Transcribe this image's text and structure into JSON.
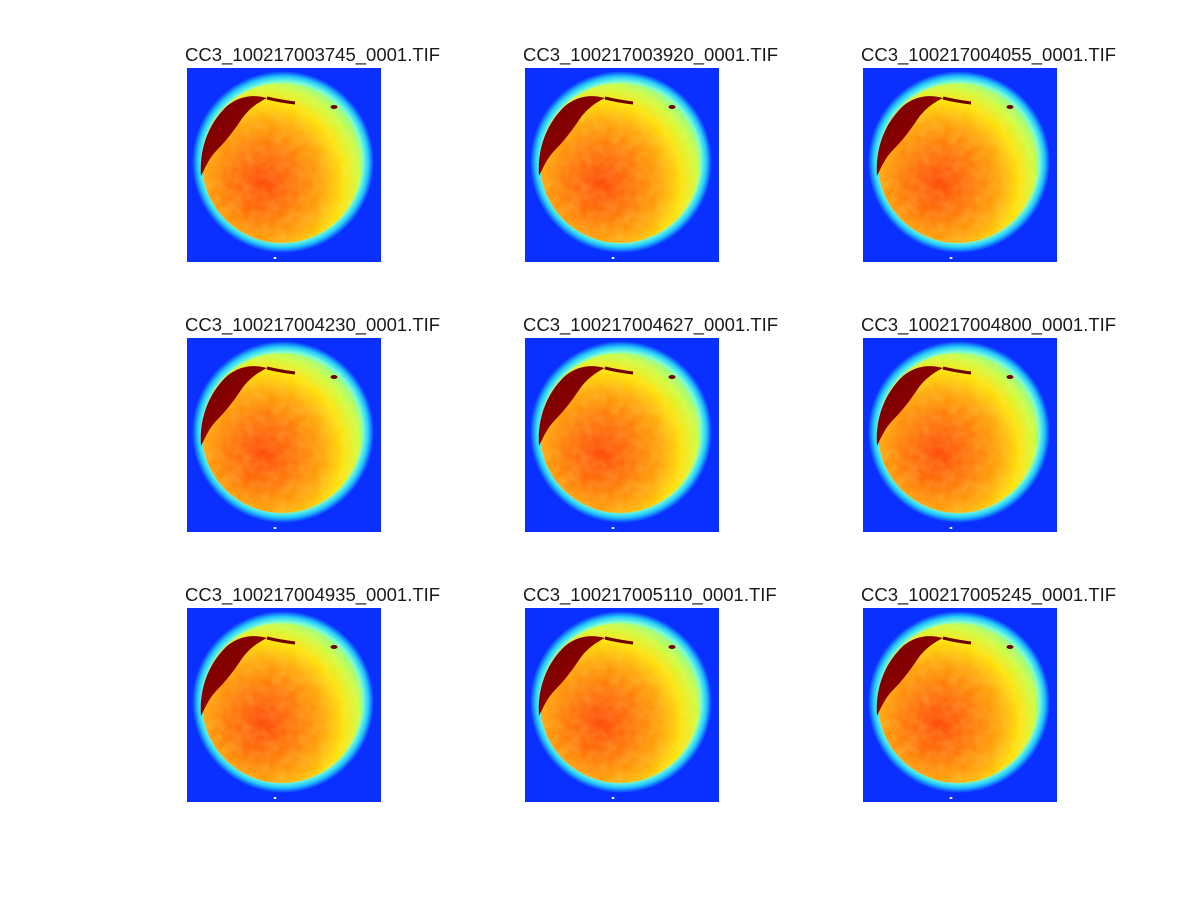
{
  "figure": {
    "colormap": "jet",
    "background_color": "#ffffff",
    "image_background_color": "#0a30ff",
    "panels": [
      {
        "title": "CC3_100217003745_0001.TIF",
        "icon": "allsky-fisheye-image"
      },
      {
        "title": "CC3_100217003920_0001.TIF",
        "icon": "allsky-fisheye-image"
      },
      {
        "title": "CC3_100217004055_0001.TIF",
        "icon": "allsky-fisheye-image"
      },
      {
        "title": "CC3_100217004230_0001.TIF",
        "icon": "allsky-fisheye-image"
      },
      {
        "title": "CC3_100217004627_0001.TIF",
        "icon": "allsky-fisheye-image"
      },
      {
        "title": "CC3_100217004800_0001.TIF",
        "icon": "allsky-fisheye-image"
      },
      {
        "title": "CC3_100217004935_0001.TIF",
        "icon": "allsky-fisheye-image"
      },
      {
        "title": "CC3_100217005110_0001.TIF",
        "icon": "allsky-fisheye-image"
      },
      {
        "title": "CC3_100217005245_0001.TIF",
        "icon": "allsky-fisheye-image"
      }
    ]
  }
}
